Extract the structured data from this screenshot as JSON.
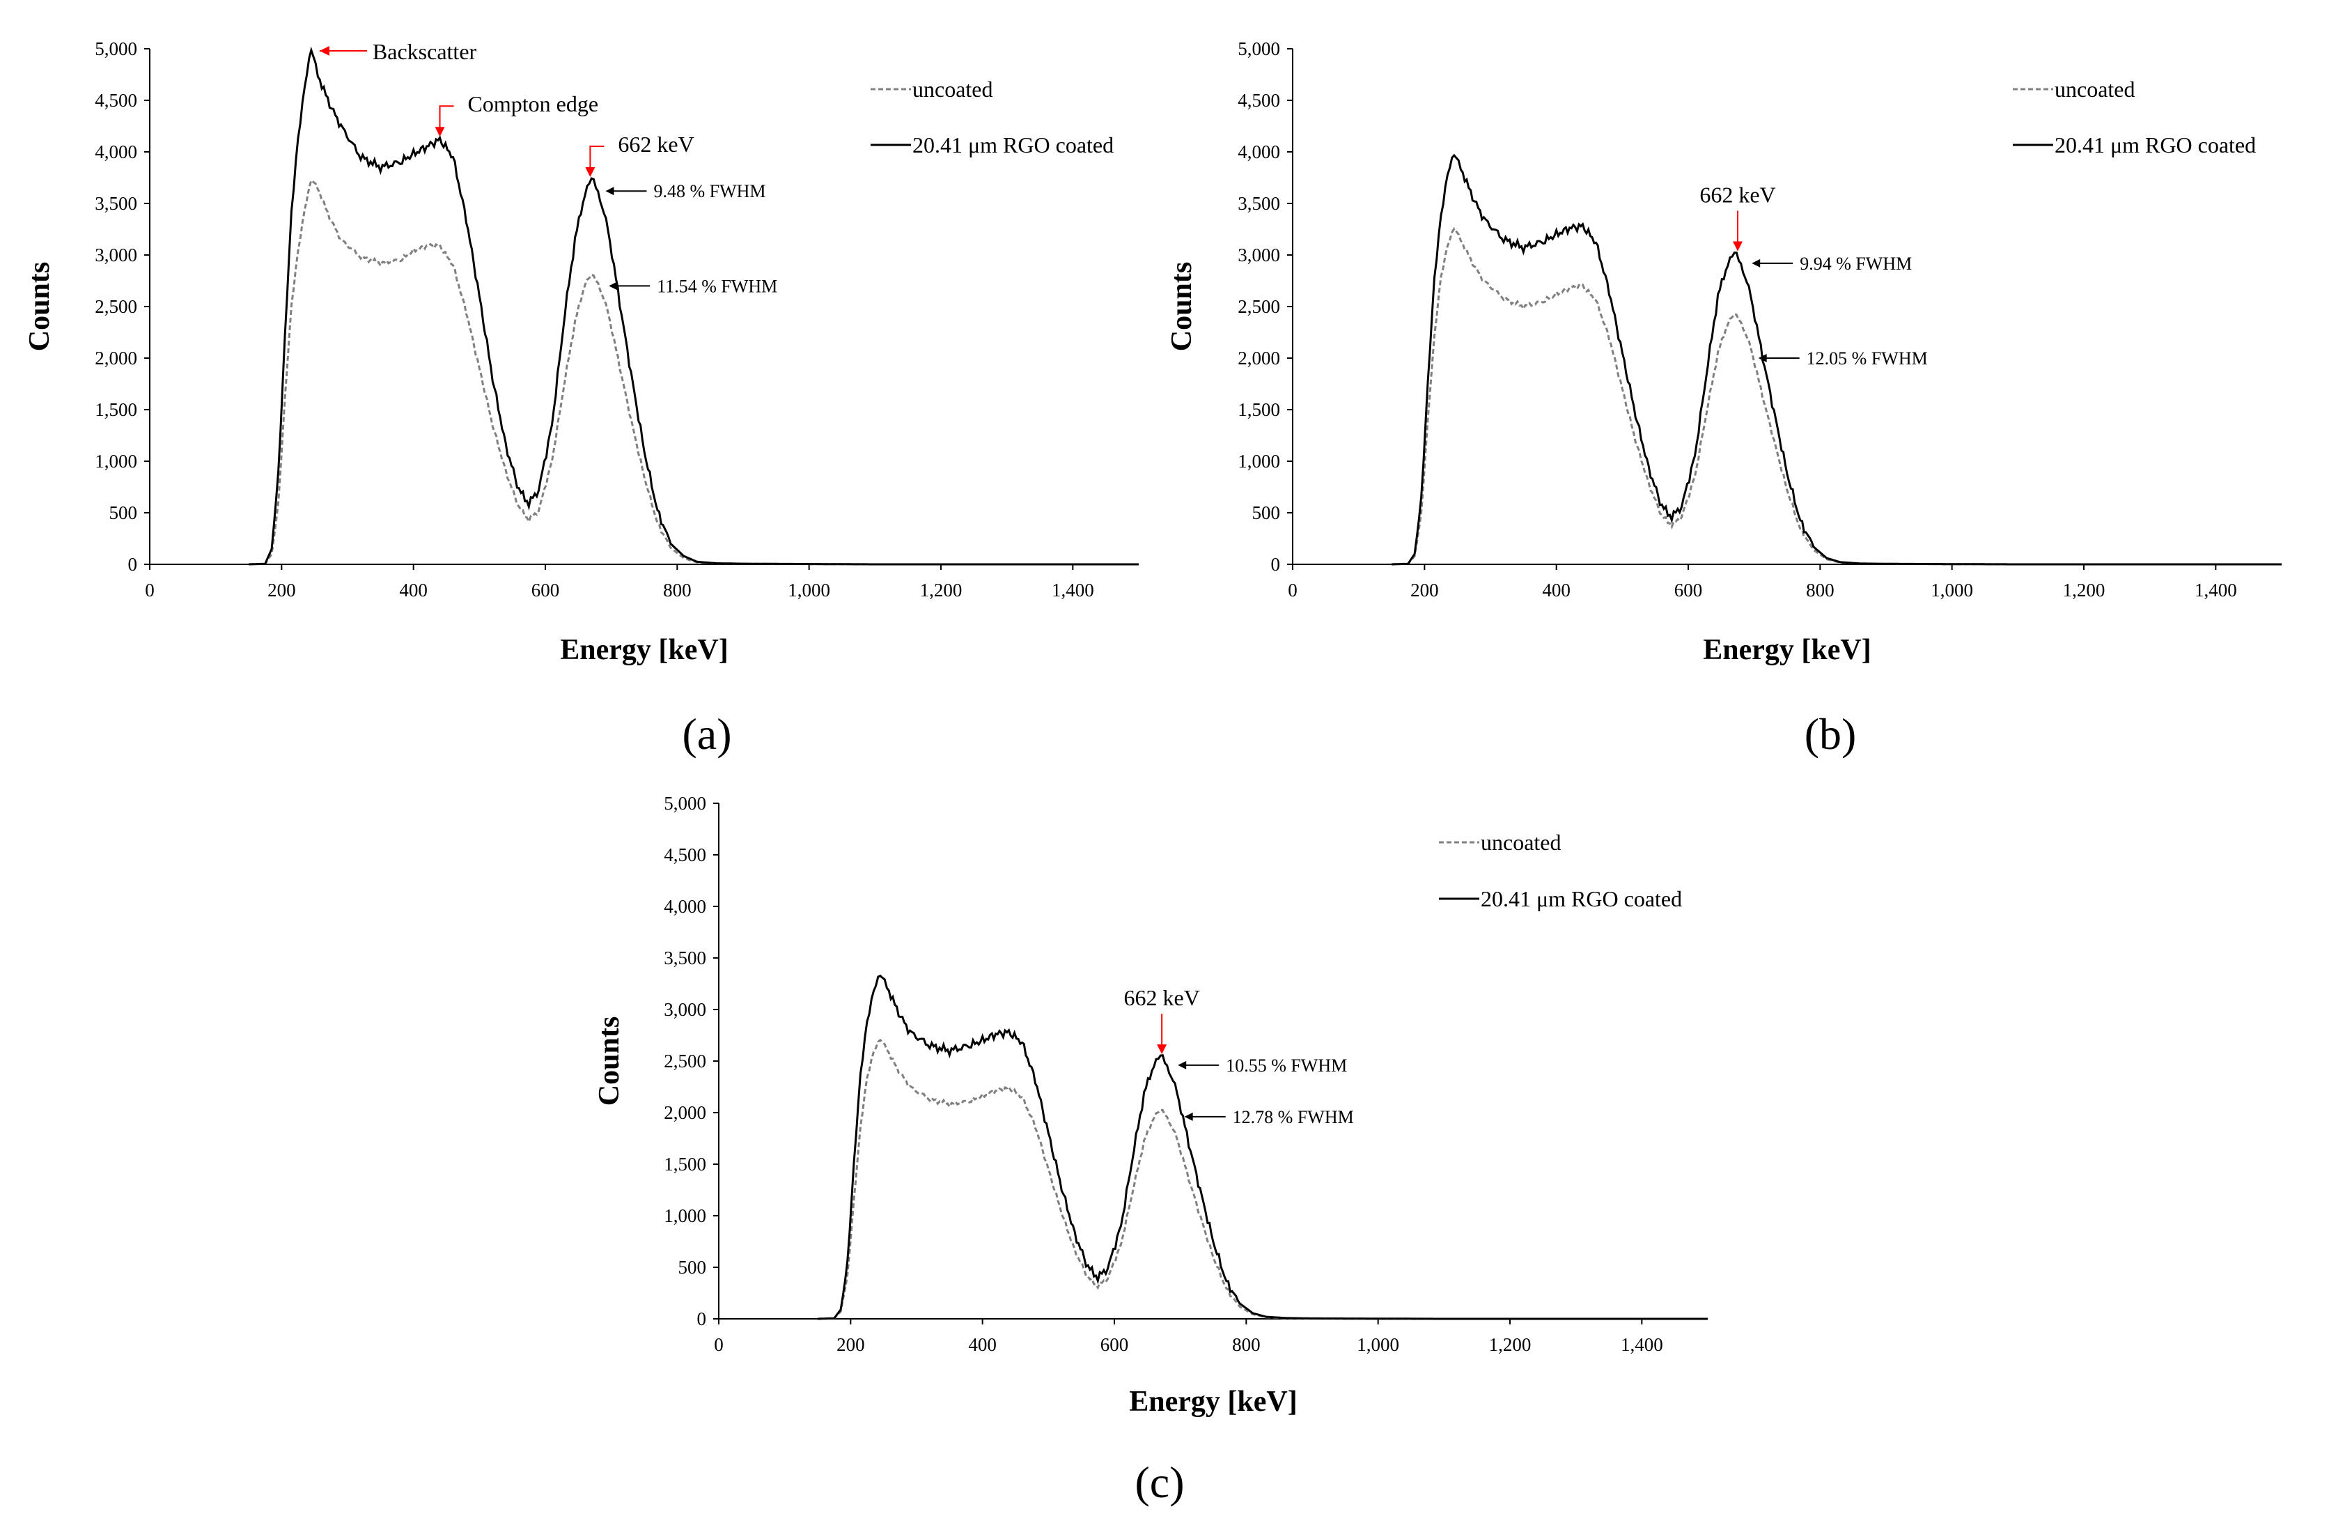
{
  "colors": {
    "coated": "#000000",
    "uncoated": "#808080",
    "highlight": "#ff0000",
    "axis": "#000000"
  },
  "chart_data": [
    {
      "type": "line",
      "panel_label": "(a)",
      "xlabel": "Energy [keV]",
      "ylabel": "Counts",
      "xlim": [
        0,
        1500
      ],
      "ylim": [
        0,
        5000
      ],
      "x_ticks": [
        0,
        200,
        400,
        600,
        800,
        1000,
        1200,
        1400
      ],
      "x_tick_labels": [
        "0",
        "200",
        "400",
        "600",
        "800",
        "1,000",
        "1,200",
        "1,400"
      ],
      "y_ticks": [
        0,
        500,
        1000,
        1500,
        2000,
        2500,
        3000,
        3500,
        4000,
        4500,
        5000
      ],
      "y_tick_labels": [
        "0",
        "500",
        "1,000",
        "1,500",
        "2,000",
        "2,500",
        "3,000",
        "3,500",
        "4,000",
        "4,500",
        "5,000"
      ],
      "legend": [
        {
          "label": "uncoated",
          "style": "dashed"
        },
        {
          "label": "20.41 μm RGO coated",
          "style": "solid"
        }
      ],
      "series": [
        {
          "name": "uncoated",
          "style": "dashed",
          "x": [
            150,
            175,
            185,
            195,
            205,
            215,
            225,
            235,
            245,
            255,
            270,
            290,
            320,
            350,
            380,
            400,
            420,
            440,
            460,
            480,
            500,
            520,
            540,
            560,
            575,
            590,
            610,
            630,
            645,
            660,
            670,
            680,
            695,
            710,
            730,
            750,
            770,
            790,
            810,
            830,
            860,
            900,
            1000,
            1100,
            1500
          ],
          "y": [
            0,
            5,
            100,
            600,
            1600,
            2500,
            3050,
            3450,
            3720,
            3650,
            3400,
            3150,
            2980,
            2920,
            2950,
            3040,
            3090,
            3090,
            2900,
            2450,
            1900,
            1350,
            900,
            550,
            430,
            520,
            1000,
            1800,
            2350,
            2720,
            2800,
            2730,
            2450,
            2000,
            1400,
            850,
            400,
            160,
            60,
            20,
            8,
            5,
            2,
            0,
            0
          ]
        },
        {
          "name": "20.41 μm RGO coated",
          "style": "solid",
          "x": [
            150,
            175,
            185,
            195,
            205,
            215,
            225,
            235,
            245,
            255,
            270,
            290,
            320,
            350,
            380,
            400,
            420,
            440,
            460,
            480,
            500,
            520,
            540,
            560,
            575,
            590,
            610,
            630,
            645,
            660,
            670,
            680,
            695,
            710,
            730,
            750,
            770,
            790,
            810,
            830,
            860,
            900,
            1000,
            1100,
            1500
          ],
          "y": [
            0,
            5,
            150,
            900,
            2200,
            3400,
            4150,
            4650,
            4980,
            4750,
            4500,
            4250,
            3950,
            3850,
            3900,
            3980,
            4050,
            4120,
            3950,
            3350,
            2600,
            1800,
            1150,
            720,
            590,
            720,
            1350,
            2450,
            3150,
            3600,
            3730,
            3620,
            3250,
            2650,
            1850,
            1100,
            520,
            200,
            80,
            25,
            10,
            6,
            3,
            0,
            0
          ]
        }
      ],
      "annotations": {
        "backscatter": "Backscatter",
        "compton": "Compton edge",
        "peak": "662 keV",
        "fwhm_coated": "9.48 % FWHM",
        "fwhm_uncoated": "11.54 % FWHM"
      }
    },
    {
      "type": "line",
      "panel_label": "(b)",
      "xlabel": "Energy [keV]",
      "ylabel": "Counts",
      "xlim": [
        0,
        1500
      ],
      "ylim": [
        0,
        5000
      ],
      "x_ticks": [
        0,
        200,
        400,
        600,
        800,
        1000,
        1200,
        1400
      ],
      "x_tick_labels": [
        "0",
        "200",
        "400",
        "600",
        "800",
        "1,000",
        "1,200",
        "1,400"
      ],
      "y_ticks": [
        0,
        500,
        1000,
        1500,
        2000,
        2500,
        3000,
        3500,
        4000,
        4500,
        5000
      ],
      "y_tick_labels": [
        "0",
        "500",
        "1,000",
        "1,500",
        "2,000",
        "2,500",
        "3,000",
        "3,500",
        "4,000",
        "4,500",
        "5,000"
      ],
      "legend": [
        {
          "label": "uncoated",
          "style": "dashed"
        },
        {
          "label": "20.41 μm RGO coated",
          "style": "solid"
        }
      ],
      "series": [
        {
          "name": "uncoated",
          "style": "dashed",
          "x": [
            150,
            175,
            185,
            195,
            205,
            215,
            225,
            235,
            245,
            255,
            270,
            290,
            320,
            350,
            380,
            400,
            420,
            440,
            460,
            480,
            500,
            520,
            540,
            560,
            575,
            590,
            610,
            630,
            645,
            660,
            670,
            680,
            695,
            710,
            730,
            750,
            770,
            790,
            810,
            830,
            860,
            900,
            1000,
            1100,
            1500
          ],
          "y": [
            0,
            5,
            80,
            500,
            1400,
            2200,
            2800,
            3100,
            3250,
            3150,
            2950,
            2750,
            2580,
            2500,
            2550,
            2620,
            2680,
            2700,
            2560,
            2200,
            1700,
            1200,
            780,
            470,
            380,
            460,
            850,
            1550,
            2050,
            2340,
            2420,
            2350,
            2100,
            1700,
            1200,
            720,
            340,
            140,
            50,
            18,
            7,
            4,
            2,
            0,
            0
          ]
        },
        {
          "name": "20.41 μm RGO coated",
          "style": "solid",
          "x": [
            150,
            175,
            185,
            195,
            205,
            215,
            225,
            235,
            245,
            255,
            270,
            290,
            320,
            350,
            380,
            400,
            420,
            440,
            460,
            480,
            500,
            520,
            540,
            560,
            575,
            590,
            610,
            630,
            645,
            660,
            670,
            680,
            695,
            710,
            730,
            750,
            770,
            790,
            810,
            830,
            860,
            900,
            1000,
            1100,
            1500
          ],
          "y": [
            0,
            5,
            100,
            650,
            1750,
            2750,
            3400,
            3800,
            3960,
            3850,
            3600,
            3350,
            3150,
            3070,
            3130,
            3200,
            3260,
            3280,
            3120,
            2650,
            2050,
            1450,
            930,
            560,
            460,
            560,
            1050,
            1950,
            2600,
            2920,
            3010,
            2920,
            2600,
            2100,
            1480,
            880,
            420,
            170,
            60,
            22,
            8,
            5,
            2,
            0,
            0
          ]
        }
      ],
      "annotations": {
        "peak": "662 keV",
        "fwhm_coated": "9.94 % FWHM",
        "fwhm_uncoated": "12.05 % FWHM"
      }
    },
    {
      "type": "line",
      "panel_label": "(c)",
      "xlabel": "Energy [keV]",
      "ylabel": "Counts",
      "xlim": [
        0,
        1500
      ],
      "ylim": [
        0,
        5000
      ],
      "x_ticks": [
        0,
        200,
        400,
        600,
        800,
        1000,
        1200,
        1400
      ],
      "x_tick_labels": [
        "0",
        "200",
        "400",
        "600",
        "800",
        "1,000",
        "1,200",
        "1,400"
      ],
      "y_ticks": [
        0,
        500,
        1000,
        1500,
        2000,
        2500,
        3000,
        3500,
        4000,
        4500,
        5000
      ],
      "y_tick_labels": [
        "0",
        "500",
        "1,000",
        "1,500",
        "2,000",
        "2,500",
        "3,000",
        "3,500",
        "4,000",
        "4,500",
        "5,000"
      ],
      "legend": [
        {
          "label": "uncoated",
          "style": "dashed"
        },
        {
          "label": "20.41 μm RGO coated",
          "style": "solid"
        }
      ],
      "series": [
        {
          "name": "uncoated",
          "style": "dashed",
          "x": [
            150,
            175,
            185,
            195,
            205,
            215,
            225,
            235,
            245,
            255,
            270,
            290,
            320,
            350,
            380,
            400,
            420,
            440,
            460,
            480,
            500,
            520,
            540,
            560,
            575,
            590,
            610,
            630,
            645,
            660,
            670,
            680,
            695,
            710,
            730,
            750,
            770,
            790,
            810,
            830,
            860,
            900,
            1000,
            1100,
            1500
          ],
          "y": [
            0,
            5,
            70,
            420,
            1150,
            1850,
            2350,
            2600,
            2700,
            2620,
            2430,
            2250,
            2130,
            2080,
            2110,
            2160,
            2210,
            2240,
            2150,
            1870,
            1450,
            1030,
            660,
            400,
            320,
            390,
            720,
            1300,
            1720,
            1960,
            2020,
            1960,
            1750,
            1420,
            1000,
            600,
            290,
            120,
            45,
            15,
            6,
            3,
            1,
            0,
            0
          ]
        },
        {
          "name": "20.41 μm RGO coated",
          "style": "solid",
          "x": [
            150,
            175,
            185,
            195,
            205,
            215,
            225,
            235,
            245,
            255,
            270,
            290,
            320,
            350,
            380,
            400,
            420,
            440,
            460,
            480,
            500,
            520,
            540,
            560,
            575,
            590,
            610,
            630,
            645,
            660,
            670,
            680,
            695,
            710,
            730,
            750,
            770,
            790,
            810,
            830,
            860,
            900,
            1000,
            1100,
            1500
          ],
          "y": [
            0,
            5,
            90,
            550,
            1500,
            2350,
            2900,
            3200,
            3320,
            3230,
            3000,
            2780,
            2650,
            2600,
            2650,
            2700,
            2760,
            2780,
            2680,
            2320,
            1800,
            1270,
            820,
            500,
            400,
            490,
            900,
            1650,
            2180,
            2470,
            2540,
            2460,
            2200,
            1780,
            1250,
            750,
            360,
            150,
            55,
            20,
            8,
            4,
            2,
            0,
            0
          ]
        }
      ],
      "annotations": {
        "peak": "662 keV",
        "fwhm_coated": "10.55 % FWHM",
        "fwhm_uncoated": "12.78 % FWHM"
      }
    }
  ]
}
